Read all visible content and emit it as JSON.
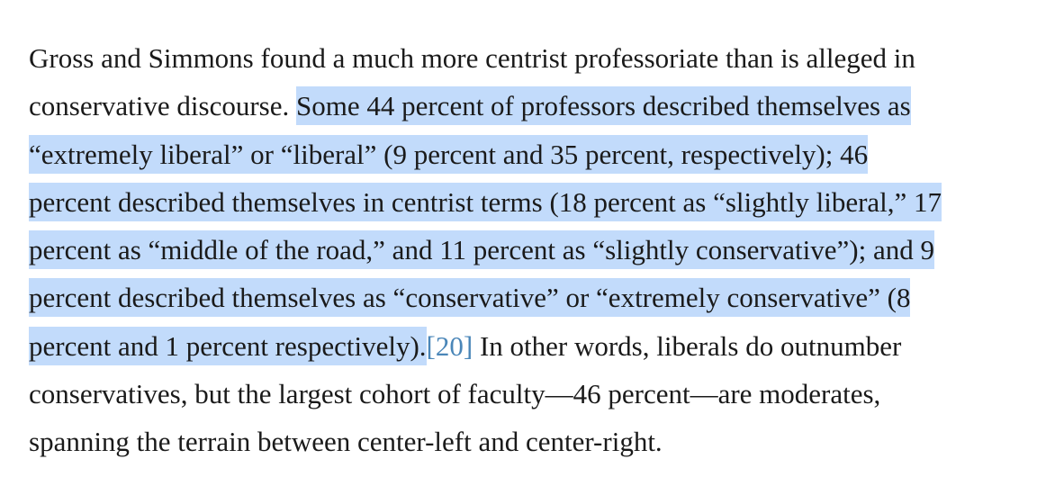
{
  "paragraph": {
    "lines": [
      {
        "plain_before": "Gross and Simmons found a much more centrist professoriate than is alleged in",
        "highlighted": "",
        "footnote": "",
        "plain_after": ""
      },
      {
        "plain_before": "conservative discourse. ",
        "highlighted": "Some 44 percent of professors described themselves as",
        "footnote": "",
        "plain_after": ""
      },
      {
        "plain_before": "",
        "highlighted": "“extremely liberal” or “liberal” (9 percent and 35 percent, respectively); 46",
        "footnote": "",
        "plain_after": ""
      },
      {
        "plain_before": "",
        "highlighted": "percent described themselves in centrist terms (18 percent as “slightly liberal,” 17",
        "footnote": "",
        "plain_after": ""
      },
      {
        "plain_before": "",
        "highlighted": "percent as “middle of the road,” and 11 percent as “slightly conservative”); and 9",
        "footnote": "",
        "plain_after": ""
      },
      {
        "plain_before": "",
        "highlighted": "percent described themselves as “conservative” or “extremely conservative” (8",
        "footnote": "",
        "plain_after": ""
      },
      {
        "plain_before": "",
        "highlighted": "percent and 1 percent respectively).",
        "footnote": "[20]",
        "plain_after": " In other words, liberals do outnumber"
      },
      {
        "plain_before": "conservatives, but the largest cohort of faculty—46 percent—are moderates,",
        "highlighted": "",
        "footnote": "",
        "plain_after": ""
      },
      {
        "plain_before": "spanning the terrain between center-left and center-right.",
        "highlighted": "",
        "footnote": "",
        "plain_after": ""
      }
    ]
  },
  "colors": {
    "text": "#1a1a1a",
    "highlight": "#c2dbfb",
    "footnote_link": "#4a86b8",
    "background": "#ffffff"
  }
}
